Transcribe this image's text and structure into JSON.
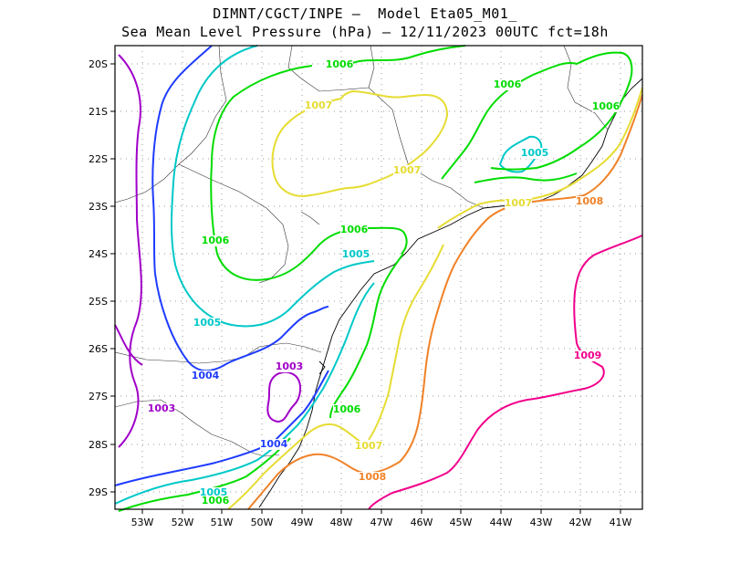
{
  "title": {
    "line1": "DIMNT/CGCT/INPE –  Model Eta05_M01_",
    "line2": "Sea Mean Level Pressure (hPa) – 12/11/2023 00UTC fct=18h"
  },
  "axes": {
    "lon_ticks": [
      "53W",
      "52W",
      "51W",
      "50W",
      "49W",
      "48W",
      "47W",
      "46W",
      "45W",
      "44W",
      "43W",
      "42W",
      "41W"
    ],
    "lat_ticks": [
      "20S",
      "21S",
      "22S",
      "23S",
      "24S",
      "25S",
      "26S",
      "27S",
      "28S",
      "29S"
    ]
  },
  "contours": {
    "colors": {
      "1003": "#a000c8",
      "1004": "#1e3cff",
      "1005": "#00c8c8",
      "1006": "#00dc00",
      "1007": "#e6dc32",
      "1008": "#f08228",
      "1009": "#f0008c"
    },
    "labels": [
      {
        "text": "1003",
        "level": "1003"
      },
      {
        "text": "1003",
        "level": "1003"
      },
      {
        "text": "1004",
        "level": "1004"
      },
      {
        "text": "1004",
        "level": "1004"
      },
      {
        "text": "1005",
        "level": "1005"
      },
      {
        "text": "1005",
        "level": "1005"
      },
      {
        "text": "1005",
        "level": "1005"
      },
      {
        "text": "1005",
        "level": "1005"
      },
      {
        "text": "1006",
        "level": "1006"
      },
      {
        "text": "1006",
        "level": "1006"
      },
      {
        "text": "1006",
        "level": "1006"
      },
      {
        "text": "1006",
        "level": "1006"
      },
      {
        "text": "1006",
        "level": "1006"
      },
      {
        "text": "1006",
        "level": "1006"
      },
      {
        "text": "1006",
        "level": "1006"
      },
      {
        "text": "1007",
        "level": "1007"
      },
      {
        "text": "1007",
        "level": "1007"
      },
      {
        "text": "1007",
        "level": "1007"
      },
      {
        "text": "1007",
        "level": "1007"
      },
      {
        "text": "1008",
        "level": "1008"
      },
      {
        "text": "1008",
        "level": "1008"
      },
      {
        "text": "1009",
        "level": "1009"
      }
    ]
  }
}
